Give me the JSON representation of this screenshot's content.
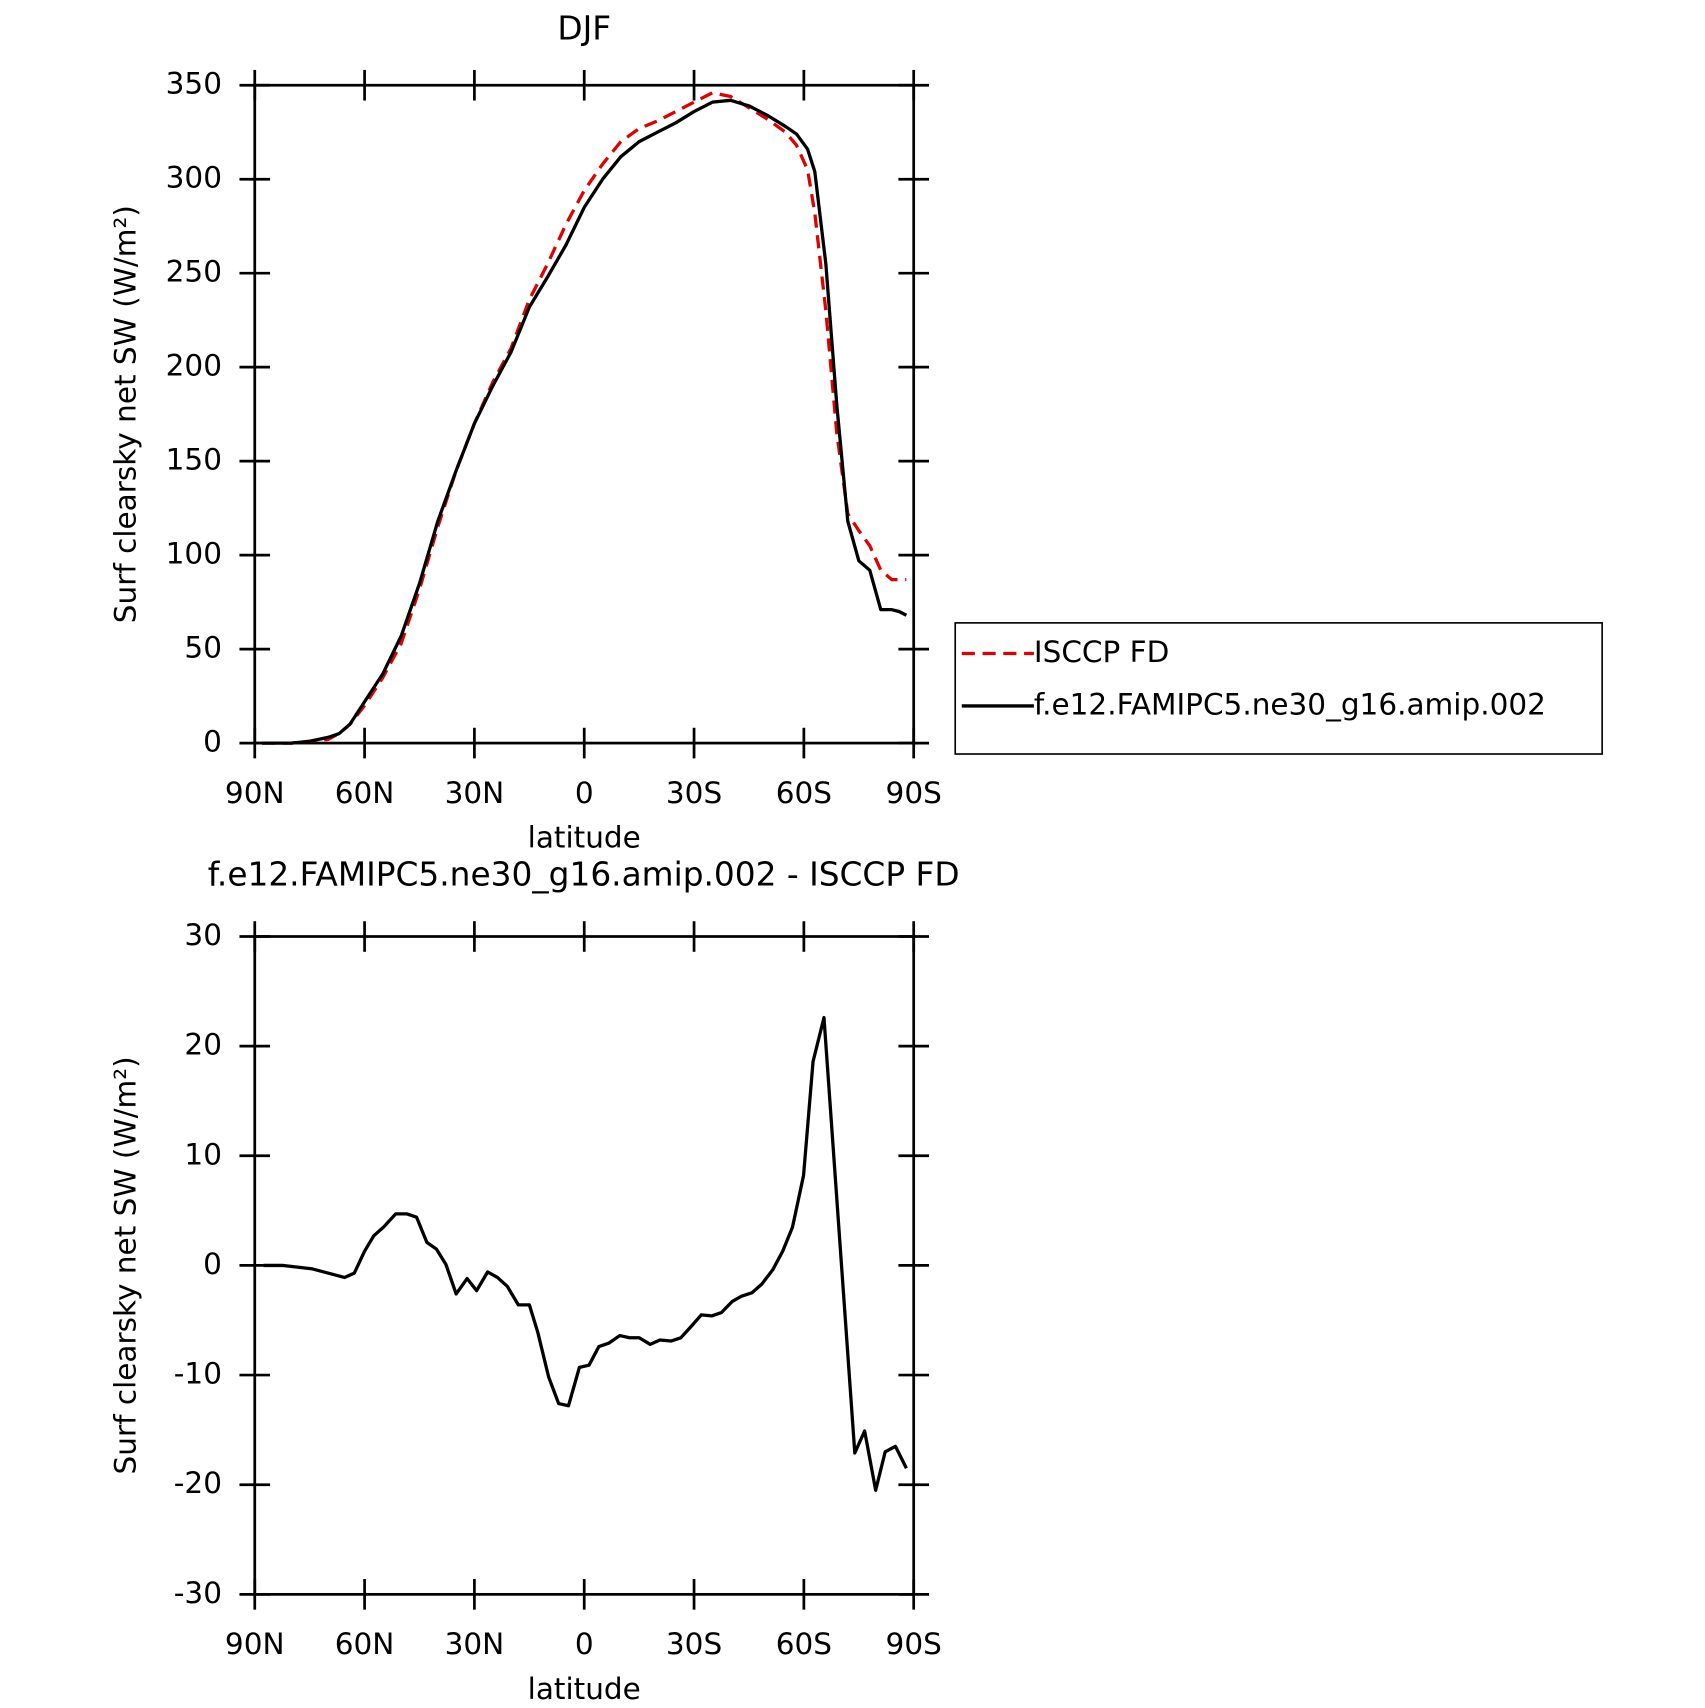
{
  "chart_data": [
    {
      "type": "line",
      "title": "DJF",
      "xlabel": "latitude",
      "ylabel": "Surf clearsky net SW (W/m²)",
      "x": [
        88,
        80,
        75,
        70,
        67,
        64,
        60,
        55,
        50,
        45,
        40,
        35,
        30,
        25,
        20,
        15,
        10,
        5,
        0,
        -5,
        -10,
        -15,
        -20,
        -25,
        -30,
        -35,
        -40,
        -45,
        -50,
        -55,
        -58,
        -61,
        -63,
        -66,
        -69,
        -72,
        -75,
        -78,
        -81,
        -84,
        -86,
        -88
      ],
      "series": [
        {
          "name": "ISCCP FD",
          "color": "#e00000",
          "dash": true,
          "values": [
            0,
            0,
            1,
            2,
            5,
            10,
            20,
            35,
            53,
            82,
            115,
            145,
            170,
            192,
            210,
            236,
            255,
            276,
            294,
            308,
            320,
            327,
            331,
            336,
            341,
            346,
            344,
            338,
            332,
            325,
            318,
            305,
            282,
            230,
            165,
            122,
            113,
            105,
            92,
            87,
            87,
            87
          ]
        },
        {
          "name": "f.e12.FAMIPC5.ne30_g16.amip.002",
          "color": "#000000",
          "dash": false,
          "values": [
            0,
            0,
            1,
            3,
            5,
            10,
            22,
            37,
            57,
            85,
            118,
            145,
            170,
            190,
            208,
            232,
            248,
            265,
            285,
            300,
            312,
            320,
            325,
            330,
            336,
            341,
            342,
            339,
            334,
            328,
            324,
            316,
            304,
            255,
            180,
            118,
            97,
            92,
            71,
            71,
            70,
            68
          ]
        }
      ],
      "xlim": [
        90,
        -90
      ],
      "xticks": [
        {
          "value": 90,
          "label": "90N"
        },
        {
          "value": 60,
          "label": "60N"
        },
        {
          "value": 30,
          "label": "30N"
        },
        0,
        {
          "value": -30,
          "label": "30S"
        },
        {
          "value": -60,
          "label": "60S"
        },
        {
          "value": -90,
          "label": "90S"
        }
      ],
      "ylim": [
        0,
        350
      ],
      "yticks": [
        0,
        50,
        100,
        150,
        200,
        250,
        300,
        350
      ],
      "legend": "right"
    },
    {
      "type": "line",
      "title": "f.e12.FAMIPC5.ne30_g16.amip.002 - ISCCP FD",
      "xlabel": "latitude",
      "ylabel": "Surf clearsky net SW (W/m²)",
      "x": [
        87.6,
        82.5,
        74.5,
        70,
        65.5,
        62.8,
        60,
        57.5,
        54.8,
        51.5,
        48.5,
        45.8,
        43,
        40.4,
        37.8,
        35,
        32,
        29.4,
        26.4,
        23.7,
        21,
        18,
        15,
        12.7,
        9.7,
        7,
        4.3,
        1.3,
        -1.3,
        -4,
        -6.7,
        -9.7,
        -12.4,
        -15,
        -18,
        -20.7,
        -23.7,
        -26.4,
        -29.1,
        -32,
        -34.8,
        -37.5,
        -40.4,
        -43,
        -45.8,
        -48.5,
        -51.5,
        -54.2,
        -56.9,
        -59.9,
        -62.5,
        -65.5,
        -73.9,
        -76.6,
        -79.6,
        -82.2,
        -85,
        -88
      ],
      "series": [
        {
          "name": "f.e12.FAMIPC5.ne30_g16.amip.002 - ISCCP FD",
          "color": "#000000",
          "values": [
            0,
            0,
            -0.3,
            -0.7,
            -1.1,
            -0.7,
            1.3,
            2.7,
            3.5,
            4.7,
            4.7,
            4.4,
            2.1,
            1.5,
            0.1,
            -2.6,
            -1.2,
            -2.3,
            -0.6,
            -1.1,
            -1.9,
            -3.6,
            -3.6,
            -6.1,
            -10.2,
            -12.6,
            -12.8,
            -9.3,
            -9.1,
            -7.4,
            -7.1,
            -6.4,
            -6.6,
            -6.6,
            -7.2,
            -6.8,
            -6.9,
            -6.6,
            -5.6,
            -4.5,
            -4.6,
            -4.3,
            -3.3,
            -2.8,
            -2.5,
            -1.7,
            -0.4,
            1.3,
            3.5,
            8.2,
            18.6,
            22.6,
            -17.1,
            -15.1,
            -20.5,
            -17,
            -16.5,
            -18.5
          ]
        }
      ],
      "xlim": [
        90,
        -90
      ],
      "xticks": [
        {
          "value": 90,
          "label": "90N"
        },
        {
          "value": 60,
          "label": "60N"
        },
        {
          "value": 30,
          "label": "30N"
        },
        0,
        {
          "value": -30,
          "label": "30S"
        },
        {
          "value": -60,
          "label": "60S"
        },
        {
          "value": -90,
          "label": "90S"
        }
      ],
      "ylim": [
        -30,
        30
      ],
      "yticks": [
        -30,
        -20,
        -10,
        0,
        10,
        20,
        30
      ]
    }
  ]
}
